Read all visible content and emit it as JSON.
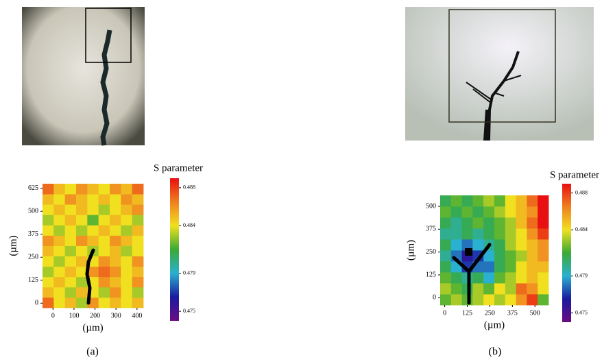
{
  "chart_data": [
    {
      "type": "heatmap",
      "caption": "(a)",
      "colorbar_title": "S parameter",
      "xlabel": "(µm)",
      "ylabel": "(µm)",
      "xlim": [
        -50,
        430
      ],
      "ylim": [
        -25,
        650
      ],
      "xticks": [
        0,
        100,
        200,
        300,
        400
      ],
      "yticks": [
        0,
        125,
        250,
        375,
        500,
        625
      ],
      "clim": [
        0.474,
        0.489
      ],
      "cticks": [
        0.475,
        0.479,
        0.484,
        0.488
      ],
      "colorscale": [
        "#6a0d83",
        "#1a1aa0",
        "#2ab0d0",
        "#3aaa35",
        "#f0e020",
        "#f08020",
        "#e81010"
      ],
      "z": [
        [
          0.487,
          0.484,
          0.485,
          0.483,
          0.486,
          0.484,
          0.485,
          0.484,
          0.485
        ],
        [
          0.485,
          0.484,
          0.483,
          0.485,
          0.484,
          0.483,
          0.486,
          0.484,
          0.483
        ],
        [
          0.484,
          0.485,
          0.484,
          0.483,
          0.484,
          0.486,
          0.485,
          0.484,
          0.486
        ],
        [
          0.483,
          0.484,
          0.485,
          0.484,
          0.486,
          0.487,
          0.486,
          0.484,
          0.485
        ],
        [
          0.484,
          0.483,
          0.484,
          0.485,
          0.484,
          0.486,
          0.485,
          0.484,
          0.486
        ],
        [
          0.485,
          0.484,
          0.483,
          0.484,
          0.483,
          0.484,
          0.485,
          0.483,
          0.484
        ],
        [
          0.486,
          0.485,
          0.484,
          0.486,
          0.485,
          0.484,
          0.486,
          0.485,
          0.484
        ],
        [
          0.484,
          0.483,
          0.484,
          0.483,
          0.484,
          0.485,
          0.484,
          0.483,
          0.485
        ],
        [
          0.483,
          0.484,
          0.485,
          0.484,
          0.482,
          0.484,
          0.485,
          0.484,
          0.483
        ],
        [
          0.484,
          0.485,
          0.484,
          0.485,
          0.484,
          0.483,
          0.484,
          0.485,
          0.486
        ],
        [
          0.485,
          0.484,
          0.486,
          0.485,
          0.484,
          0.485,
          0.484,
          0.486,
          0.485
        ],
        [
          0.487,
          0.485,
          0.484,
          0.486,
          0.485,
          0.484,
          0.486,
          0.485,
          0.487
        ]
      ]
    },
    {
      "type": "heatmap",
      "caption": "(b)",
      "colorbar_title": "S parameter",
      "xlabel": "(µm)",
      "ylabel": "(µm)",
      "xlim": [
        -25,
        575
      ],
      "ylim": [
        -40,
        560
      ],
      "xticks": [
        0,
        125,
        250,
        375,
        500
      ],
      "yticks": [
        0,
        125,
        250,
        375,
        500
      ],
      "clim": [
        0.474,
        0.489
      ],
      "cticks": [
        0.475,
        0.479,
        0.484,
        0.488
      ],
      "colorscale": [
        "#6a0d83",
        "#1a1aa0",
        "#2ab0d0",
        "#3aaa35",
        "#f0e020",
        "#f08020",
        "#e81010"
      ],
      "z": [
        [
          0.482,
          0.483,
          0.482,
          0.483,
          0.484,
          0.483,
          0.484,
          0.486,
          0.488,
          0.482
        ],
        [
          0.483,
          0.482,
          0.481,
          0.483,
          0.482,
          0.484,
          0.483,
          0.487,
          0.486,
          0.484
        ],
        [
          0.482,
          0.481,
          0.48,
          0.481,
          0.479,
          0.482,
          0.483,
          0.484,
          0.485,
          0.484
        ],
        [
          0.481,
          0.479,
          0.477,
          0.478,
          0.478,
          0.481,
          0.482,
          0.484,
          0.485,
          0.485
        ],
        [
          0.48,
          0.478,
          0.476,
          0.477,
          0.479,
          0.481,
          0.482,
          0.483,
          0.485,
          0.486
        ],
        [
          0.481,
          0.479,
          0.478,
          0.479,
          0.48,
          0.481,
          0.483,
          0.484,
          0.485,
          0.486
        ],
        [
          0.48,
          0.48,
          0.481,
          0.48,
          0.481,
          0.482,
          0.483,
          0.484,
          0.486,
          0.488
        ],
        [
          0.481,
          0.48,
          0.481,
          0.482,
          0.481,
          0.482,
          0.483,
          0.485,
          0.487,
          0.489
        ],
        [
          0.482,
          0.481,
          0.482,
          0.481,
          0.482,
          0.483,
          0.484,
          0.485,
          0.486,
          0.489
        ],
        [
          0.481,
          0.482,
          0.481,
          0.482,
          0.483,
          0.482,
          0.484,
          0.485,
          0.487,
          0.489
        ]
      ]
    }
  ]
}
